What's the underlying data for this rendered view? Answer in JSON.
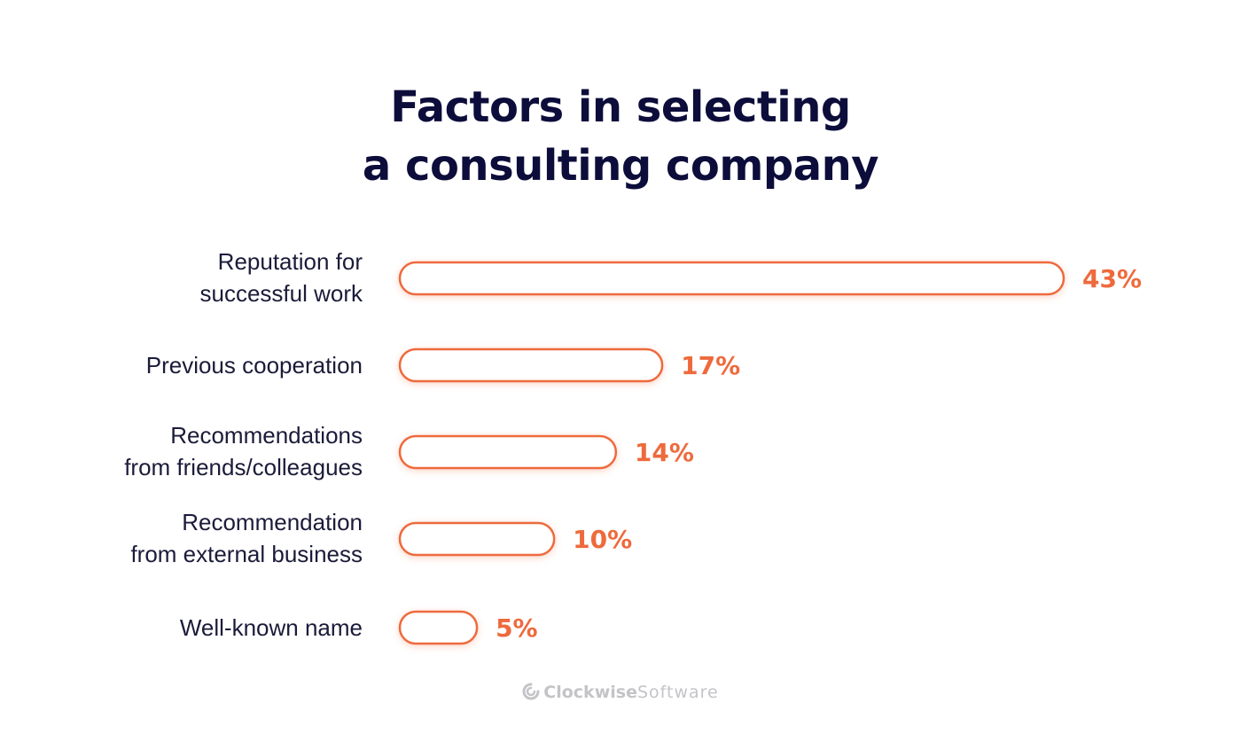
{
  "title_lines": [
    "Factors in selecting",
    "a consulting company"
  ],
  "watermark": {
    "icon": "clockwise-logo-icon",
    "brand_strong": "Clockwise",
    "brand_light": "Software"
  },
  "colors": {
    "title": "#0d0d3b",
    "label": "#1b1b3a",
    "accent": "#ee6a3c",
    "watermark": "#c4c4c8"
  },
  "chart_data": {
    "type": "bar",
    "orientation": "horizontal",
    "title": "Factors in selecting a consulting company",
    "xlabel": "",
    "ylabel": "",
    "categories": [
      [
        "Reputation for",
        "successful work"
      ],
      [
        "Previous cooperation"
      ],
      [
        "Recommendations",
        "from friends/colleagues"
      ],
      [
        "Recommendation",
        "from external business"
      ],
      [
        "Well-known name"
      ]
    ],
    "values": [
      43,
      17,
      14,
      10,
      5
    ],
    "value_labels": [
      "43%",
      "17%",
      "14%",
      "10%",
      "5%"
    ],
    "unit": "%",
    "grid": false,
    "legend": "none"
  }
}
